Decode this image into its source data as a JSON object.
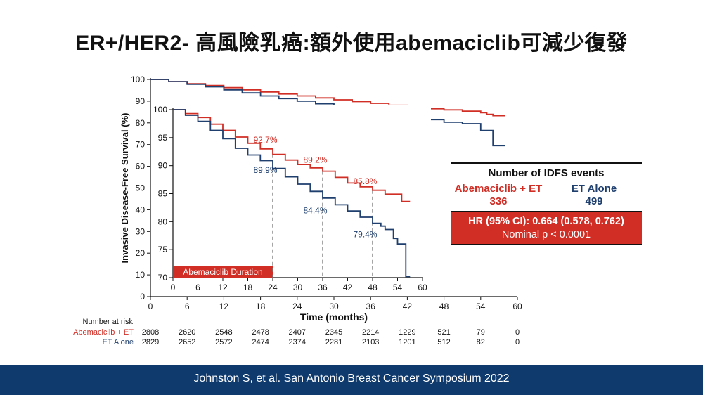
{
  "slide_title": "ER+/HER2- 高風險乳癌:額外使用abemaciclib可減少復發",
  "footer": {
    "citation": "Johnston S, et al. San Antonio Breast Cancer Symposium 2022"
  },
  "colors": {
    "red": "#d12e26",
    "blue": "#1f3f6e",
    "footer_bg": "#0e3a6e"
  },
  "idfs_box": {
    "title": "Number of IDFS events",
    "arm1_label": "Abemaciclib + ET",
    "arm1_events": "336",
    "arm2_label": "ET Alone",
    "arm2_events": "499",
    "hr_text": "HR (95% CI): 0.664 (0.578, 0.762)",
    "p_text": "Nominal p < 0.0001"
  },
  "chart_data": [
    {
      "type": "line",
      "name": "main",
      "ylabel": "Invasive Disease-Free Survival (%)",
      "xlabel": "Time (months)",
      "xlim": [
        0,
        60
      ],
      "ylim": [
        0,
        100
      ],
      "xticks": [
        0,
        6,
        12,
        18,
        24,
        30,
        36,
        42,
        48,
        54,
        60
      ],
      "yticks": [
        0,
        10,
        20,
        30,
        40,
        50,
        60,
        70,
        80,
        90,
        100
      ],
      "series": [
        {
          "name": "Abemaciclib + ET",
          "color": "#d12e26",
          "x": [
            0,
            3,
            6,
            9,
            12,
            15,
            18,
            21,
            24,
            27,
            30,
            33,
            36,
            39,
            42,
            45,
            48,
            51,
            54,
            55,
            56,
            58
          ],
          "y": [
            100,
            99,
            98,
            97.2,
            96.2,
            95.2,
            94.2,
            93.3,
            92.4,
            91.5,
            90.6,
            89.8,
            89.0,
            88.1,
            87.3,
            86.5,
            86.0,
            85.4,
            84.7,
            83.9,
            83.3,
            83.3
          ]
        },
        {
          "name": "ET Alone",
          "color": "#1f3f6e",
          "x": [
            0,
            3,
            6,
            9,
            12,
            15,
            18,
            21,
            24,
            27,
            30,
            33,
            36,
            39,
            42,
            45,
            48,
            51,
            54,
            55,
            56,
            58
          ],
          "y": [
            100,
            99,
            97.8,
            96.6,
            95.2,
            93.8,
            92.4,
            91.2,
            90.0,
            88.8,
            87.5,
            86.3,
            85.0,
            83.9,
            82.8,
            81.5,
            80.3,
            79.6,
            76.5,
            76.5,
            69.5,
            69.5
          ]
        }
      ]
    },
    {
      "type": "line",
      "name": "inset",
      "xlim": [
        0,
        60
      ],
      "ylim": [
        70,
        100
      ],
      "xticks": [
        0,
        6,
        12,
        18,
        24,
        30,
        36,
        42,
        48,
        54,
        60
      ],
      "yticks": [
        70,
        75,
        80,
        85,
        90,
        95,
        100
      ],
      "series": [
        {
          "name": "Abemaciclib + ET",
          "color": "#d12e26",
          "x": [
            0,
            3,
            6,
            9,
            12,
            15,
            18,
            21,
            24,
            27,
            30,
            33,
            36,
            39,
            42,
            45,
            48,
            50,
            51,
            54,
            55,
            57
          ],
          "y": [
            100,
            99.3,
            98.6,
            97.4,
            96.3,
            95.1,
            94.0,
            93.0,
            92.0,
            91.0,
            90.2,
            89.6,
            89.0,
            87.9,
            86.9,
            86.2,
            85.6,
            85.6,
            84.9,
            84.9,
            83.6,
            83.6
          ]
        },
        {
          "name": "ET Alone",
          "color": "#1f3f6e",
          "x": [
            0,
            3,
            6,
            9,
            12,
            15,
            18,
            21,
            24,
            27,
            30,
            33,
            36,
            39,
            42,
            45,
            48,
            50,
            51,
            53,
            54,
            55,
            56,
            57
          ],
          "y": [
            100,
            99.0,
            97.9,
            96.3,
            94.8,
            93.1,
            91.9,
            90.9,
            89.5,
            88.0,
            86.7,
            85.4,
            84.2,
            83.0,
            81.9,
            80.8,
            79.7,
            79.2,
            78.6,
            77.0,
            76.0,
            76.0,
            70.2,
            70.2
          ]
        }
      ],
      "annotations": [
        {
          "text": "92.7%",
          "x": 18,
          "y": 94.1,
          "color": "#d12e26"
        },
        {
          "text": "89.2%",
          "x": 30,
          "y": 90.5,
          "color": "#d12e26"
        },
        {
          "text": "85.8%",
          "x": 42,
          "y": 86.7,
          "color": "#d12e26"
        },
        {
          "text": "89.9%",
          "x": 18,
          "y": 88.7,
          "color": "#1f3f6e"
        },
        {
          "text": "84.4%",
          "x": 30,
          "y": 81.5,
          "color": "#1f3f6e"
        },
        {
          "text": "79.4%",
          "x": 42,
          "y": 77.2,
          "color": "#1f3f6e"
        }
      ],
      "reference_lines_x": [
        24,
        36,
        48
      ],
      "band_label": "Abemaciclib Duration",
      "band_range": [
        0,
        24
      ]
    }
  ],
  "risk_table": {
    "header": "Number at risk",
    "rows": [
      {
        "label": "Abemaciclib + ET",
        "color": "#d12e26",
        "values": [
          "2808",
          "2620",
          "2548",
          "2478",
          "2407",
          "2345",
          "2214",
          "1229",
          "521",
          "79",
          "0"
        ]
      },
      {
        "label": "ET Alone",
        "color": "#1f3f6e",
        "values": [
          "2829",
          "2652",
          "2572",
          "2474",
          "2374",
          "2281",
          "2103",
          "1201",
          "512",
          "82",
          "0"
        ]
      }
    ]
  }
}
